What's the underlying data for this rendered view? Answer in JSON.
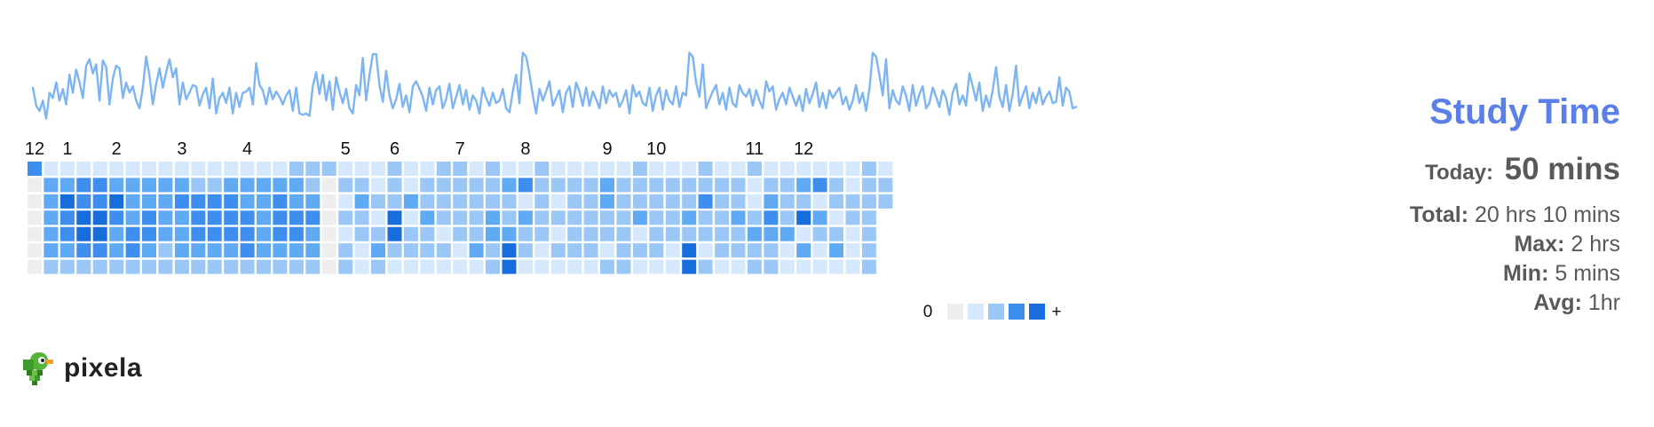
{
  "title": "Study Time",
  "stats": [
    {
      "label": "Today:",
      "value": "50 mins"
    },
    {
      "label": "Total:",
      "value": "20 hrs 10 mins"
    },
    {
      "label": "Max:",
      "value": "2 hrs"
    },
    {
      "label": "Min:",
      "value": "5 mins"
    },
    {
      "label": "Avg:",
      "value": "1hr"
    }
  ],
  "logo_text": "pixela",
  "legend": {
    "low": "0",
    "high": "+"
  },
  "colors": {
    "title": "#5b7fe8",
    "line": "#7db4f2",
    "levels": [
      "#eeeeee",
      "#d6e8fc",
      "#9ac7f6",
      "#5faaf2",
      "#3e8ef0",
      "#186ddc"
    ]
  },
  "chart_data": [
    {
      "type": "heatmap",
      "title": "",
      "x_labels": [
        {
          "label": "12",
          "week": 0
        },
        {
          "label": "1",
          "week": 2
        },
        {
          "label": "2",
          "week": 5
        },
        {
          "label": "3",
          "week": 9
        },
        {
          "label": "4",
          "week": 13
        },
        {
          "label": "5",
          "week": 19
        },
        {
          "label": "6",
          "week": 22
        },
        {
          "label": "7",
          "week": 26
        },
        {
          "label": "8",
          "week": 30
        },
        {
          "label": "9",
          "week": 35
        },
        {
          "label": "10",
          "week": 38
        },
        {
          "label": "11",
          "week": 44
        },
        {
          "label": "12",
          "week": 47
        }
      ],
      "weeks": 53,
      "days_per_week": 7,
      "levels": [
        "41111111111111112",
        "0334433333223333320",
        "0354453334444334330",
        "0345543433444434440",
        "0345534433444434430",
        "0334434323333433330",
        "0222222222222222220"
      ],
      "level_scale": [
        0,
        1,
        2,
        3,
        4,
        5
      ],
      "legend": [
        "0",
        "+"
      ]
    },
    {
      "type": "line",
      "title": "",
      "description": "daily study time trend",
      "values": [
        62,
        48,
        44,
        52,
        38,
        58,
        54,
        66,
        52,
        61,
        49,
        72,
        58,
        76,
        66,
        54,
        79,
        84,
        73,
        80,
        52,
        83,
        78,
        49,
        69,
        79,
        77,
        54,
        66,
        58,
        63,
        52,
        46,
        62,
        86,
        71,
        49,
        65,
        77,
        62,
        74,
        84,
        70,
        77,
        49,
        66,
        53,
        58,
        64,
        63,
        48,
        57,
        62,
        46,
        69,
        42,
        54,
        58,
        50,
        62,
        42,
        58,
        47,
        58,
        59,
        62,
        49,
        81,
        64,
        60,
        49,
        62,
        53,
        59,
        55,
        49,
        56,
        60,
        44,
        62,
        42,
        41,
        42,
        40,
        63,
        74,
        57,
        72,
        52,
        67,
        45,
        70,
        59,
        50,
        61,
        46,
        42,
        64,
        56,
        85,
        52,
        72,
        88,
        88,
        64,
        51,
        75,
        56,
        46,
        53,
        65,
        47,
        56,
        43,
        63,
        67,
        61,
        55,
        44,
        62,
        49,
        60,
        63,
        46,
        53,
        65,
        46,
        55,
        64,
        49,
        60,
        45,
        56,
        52,
        42,
        62,
        54,
        48,
        58,
        50,
        52,
        61,
        46,
        43,
        59,
        72,
        50,
        89,
        86,
        73,
        56,
        42,
        61,
        52,
        59,
        67,
        48,
        54,
        60,
        43,
        58,
        63,
        47,
        66,
        59,
        48,
        62,
        48,
        59,
        53,
        46,
        63,
        50,
        60,
        55,
        58,
        47,
        52,
        60,
        42,
        64,
        55,
        59,
        50,
        48,
        62,
        44,
        56,
        62,
        45,
        60,
        52,
        49,
        63,
        47,
        58,
        56,
        89,
        86,
        66,
        55,
        80,
        46,
        53,
        59,
        64,
        49,
        58,
        45,
        62,
        50,
        47,
        64,
        58,
        55,
        61,
        48,
        60,
        52,
        46,
        67,
        59,
        63,
        45,
        53,
        58,
        49,
        62,
        55,
        48,
        56,
        44,
        61,
        50,
        57,
        66,
        47,
        58,
        46,
        60,
        54,
        58,
        62,
        49,
        55,
        45,
        52,
        64,
        50,
        58,
        44,
        61,
        89,
        86,
        72,
        56,
        84,
        46,
        60,
        52,
        49,
        63,
        56,
        44,
        64,
        48,
        57,
        63,
        46,
        50,
        62,
        55,
        47,
        60,
        54,
        41,
        58,
        65,
        49,
        56,
        48,
        73,
        63,
        52,
        66,
        44,
        56,
        47,
        60,
        78,
        55,
        47,
        64,
        44,
        57,
        79,
        48,
        56,
        63,
        46,
        58,
        50,
        62,
        49,
        55,
        59,
        50,
        51,
        70,
        48,
        62,
        59,
        46,
        47
      ]
    }
  ]
}
